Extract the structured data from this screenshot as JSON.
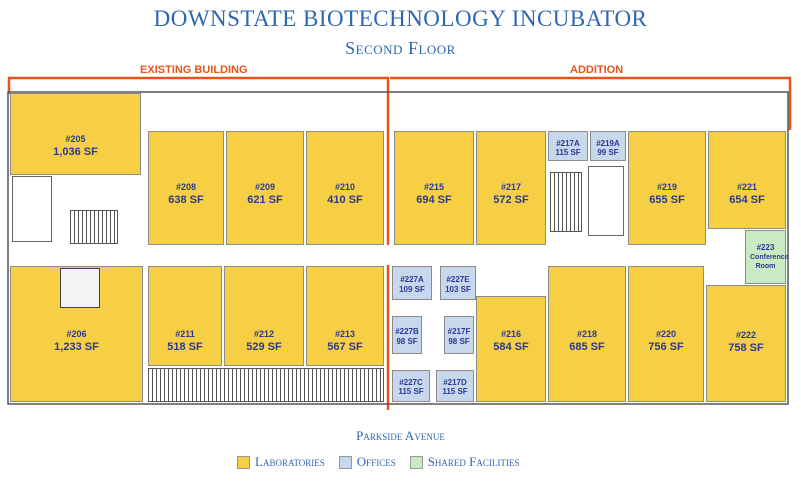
{
  "title": "Downstate Biotechnology Incubator",
  "subtitle": "Second Floor",
  "sections": {
    "existing": "EXISTING BUILDING",
    "addition": "ADDITION"
  },
  "street": "Parkside Avenue",
  "colors": {
    "lab": "#f7cf45",
    "office": "#c8d8ec",
    "shared": "#c9ebc4",
    "bracket": "#e8541a",
    "label": "#2b3990"
  },
  "rooms": {
    "r205": {
      "num": "#205",
      "sf": "1,036 SF",
      "type": "lab"
    },
    "r208": {
      "num": "#208",
      "sf": "638 SF",
      "type": "lab"
    },
    "r209": {
      "num": "#209",
      "sf": "621 SF",
      "type": "lab"
    },
    "r210": {
      "num": "#210",
      "sf": "410 SF",
      "type": "lab"
    },
    "r215": {
      "num": "#215",
      "sf": "694 SF",
      "type": "lab"
    },
    "r217": {
      "num": "#217",
      "sf": "572 SF",
      "type": "lab"
    },
    "r217a": {
      "num": "#217A",
      "sf": "115 SF",
      "type": "office"
    },
    "r219a": {
      "num": "#219A",
      "sf": "99 SF",
      "type": "office"
    },
    "r219": {
      "num": "#219",
      "sf": "655 SF",
      "type": "lab"
    },
    "r221": {
      "num": "#221",
      "sf": "654 SF",
      "type": "lab"
    },
    "r223": {
      "num": "#223",
      "sf": "Conference Room",
      "type": "shared"
    },
    "r206": {
      "num": "#206",
      "sf": "1,233 SF",
      "type": "lab"
    },
    "r211": {
      "num": "#211",
      "sf": "518 SF",
      "type": "lab"
    },
    "r212": {
      "num": "#212",
      "sf": "529 SF",
      "type": "lab"
    },
    "r213": {
      "num": "#213",
      "sf": "567 SF",
      "type": "lab"
    },
    "r227a": {
      "num": "#227A",
      "sf": "109 SF",
      "type": "office"
    },
    "r227e": {
      "num": "#227E",
      "sf": "103 SF",
      "type": "office"
    },
    "r227b": {
      "num": "#227B",
      "sf": "98 SF",
      "type": "office"
    },
    "r217f": {
      "num": "#217F",
      "sf": "98 SF",
      "type": "office"
    },
    "r227c": {
      "num": "#227C",
      "sf": "115 SF",
      "type": "office"
    },
    "r217d": {
      "num": "#217D",
      "sf": "115 SF",
      "type": "office"
    },
    "r216": {
      "num": "#216",
      "sf": "584 SF",
      "type": "lab"
    },
    "r218": {
      "num": "#218",
      "sf": "685 SF",
      "type": "lab"
    },
    "r220": {
      "num": "#220",
      "sf": "756 SF",
      "type": "lab"
    },
    "r222": {
      "num": "#222",
      "sf": "758 SF",
      "type": "lab"
    }
  },
  "legend": [
    {
      "label": "Laboratories",
      "color": "#f7cf45"
    },
    {
      "label": "Offices",
      "color": "#c8d8ec"
    },
    {
      "label": "Shared Facilities",
      "color": "#c9ebc4"
    }
  ]
}
